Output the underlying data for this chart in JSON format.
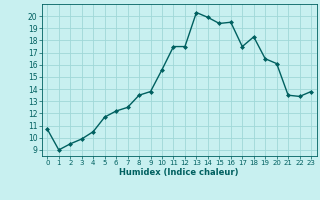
{
  "x": [
    0,
    1,
    2,
    3,
    4,
    5,
    6,
    7,
    8,
    9,
    10,
    11,
    12,
    13,
    14,
    15,
    16,
    17,
    18,
    19,
    20,
    21,
    22,
    23
  ],
  "y": [
    10.7,
    9.0,
    9.5,
    9.9,
    10.5,
    11.7,
    12.2,
    12.5,
    13.5,
    13.8,
    15.6,
    17.5,
    17.5,
    20.3,
    19.9,
    19.4,
    19.5,
    17.5,
    18.3,
    16.5,
    16.1,
    13.5,
    13.4,
    13.8
  ],
  "line_color": "#006060",
  "marker_color": "#006060",
  "bg_color": "#c8f0f0",
  "grid_color": "#a0d8d8",
  "xlabel": "Humidex (Indice chaleur)",
  "xlim": [
    -0.5,
    23.5
  ],
  "ylim": [
    8.5,
    21.0
  ],
  "yticks": [
    9,
    10,
    11,
    12,
    13,
    14,
    15,
    16,
    17,
    18,
    19,
    20
  ],
  "xticks": [
    0,
    1,
    2,
    3,
    4,
    5,
    6,
    7,
    8,
    9,
    10,
    11,
    12,
    13,
    14,
    15,
    16,
    17,
    18,
    19,
    20,
    21,
    22,
    23
  ]
}
